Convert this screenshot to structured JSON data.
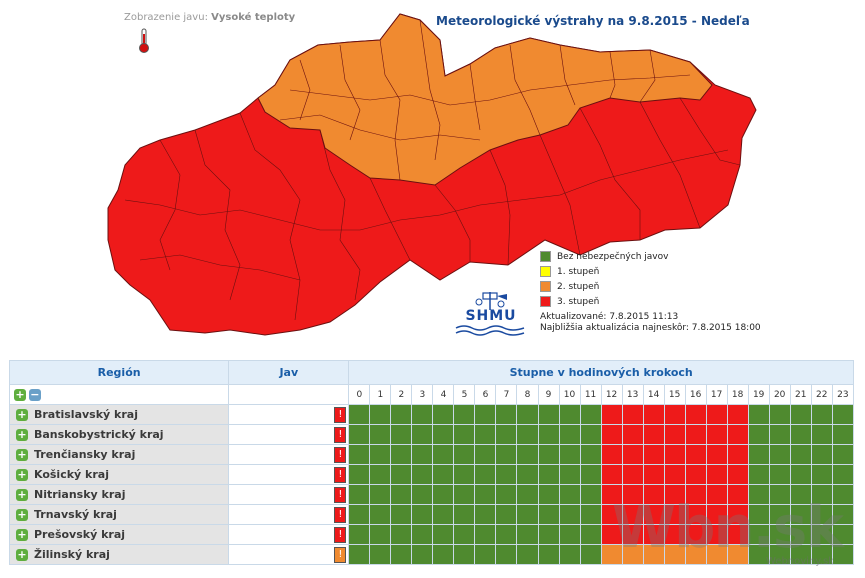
{
  "header": {
    "phenomenon_label": "Zobrazenie javu:",
    "phenomenon_value": "Vysoké teploty",
    "title": "Meteorologické výstrahy na 9.8.2015 - Nedeľa"
  },
  "legend": [
    {
      "label": "Bez nebezpečných javov",
      "color": "#4f8a2f"
    },
    {
      "label": "1. stupeň",
      "color": "#ffff00"
    },
    {
      "label": "2. stupeň",
      "color": "#f08a30"
    },
    {
      "label": "3. stupeň",
      "color": "#ee1a1a"
    }
  ],
  "updates": {
    "updated": "Aktualizované: 7.8.2015 11:13",
    "next": "Najbližšia aktualizácia najneskôr: 7.8.2015 18:00"
  },
  "logo_text": "SHMU",
  "table": {
    "col_region": "Región",
    "col_jav": "Jav",
    "col_hours": "Stupne v hodinových krokoch",
    "expand_symbol": "+",
    "collapse_symbol": "−",
    "hours": [
      "0",
      "1",
      "2",
      "3",
      "4",
      "5",
      "6",
      "7",
      "8",
      "9",
      "10",
      "11",
      "12",
      "13",
      "14",
      "15",
      "16",
      "17",
      "18",
      "19",
      "20",
      "21",
      "22",
      "23"
    ],
    "rows": [
      {
        "name": "Bratislavský kraj",
        "level": 3
      },
      {
        "name": "Banskobystrický kraj",
        "level": 3
      },
      {
        "name": "Trenčiansky kraj",
        "level": 3
      },
      {
        "name": "Košický kraj",
        "level": 3
      },
      {
        "name": "Nitriansky kraj",
        "level": 3
      },
      {
        "name": "Trnavský kraj",
        "level": 3
      },
      {
        "name": "Prešovský kraj",
        "level": 3
      },
      {
        "name": "Žilinský kraj",
        "level": 2
      }
    ],
    "warning_hours": [
      12,
      18
    ]
  },
  "colors": {
    "none": "#4f8a2f",
    "level2": "#f08a30",
    "level3": "#ee1a1a",
    "map_border": "#6b1010"
  },
  "watermark": "Wbn.sk",
  "watermark_small": "Webnoviny.sk"
}
